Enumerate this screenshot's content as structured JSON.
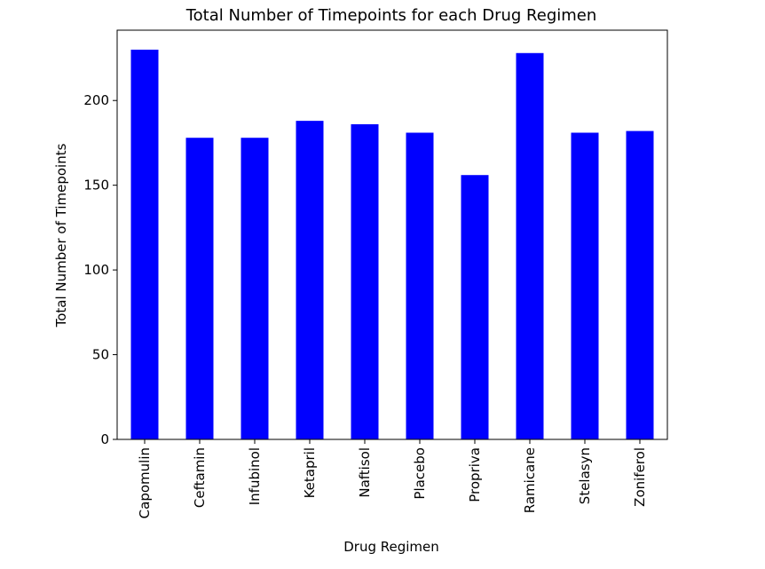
{
  "chart_data": {
    "type": "bar",
    "title": "Total Number of Timepoints for each Drug Regimen",
    "xlabel": "Drug Regimen",
    "ylabel": "Total Number of Timepoints",
    "categories": [
      "Capomulin",
      "Ceftamin",
      "Infubinol",
      "Ketapril",
      "Naftisol",
      "Placebo",
      "Propriva",
      "Ramicane",
      "Stelasyn",
      "Zoniferol"
    ],
    "values": [
      230,
      178,
      178,
      188,
      186,
      181,
      156,
      228,
      181,
      182
    ],
    "ylim": [
      0,
      241.5
    ],
    "yticks": [
      0,
      50,
      100,
      150,
      200
    ],
    "bar_color": "#0000ff",
    "grid": false,
    "legend": "none"
  }
}
